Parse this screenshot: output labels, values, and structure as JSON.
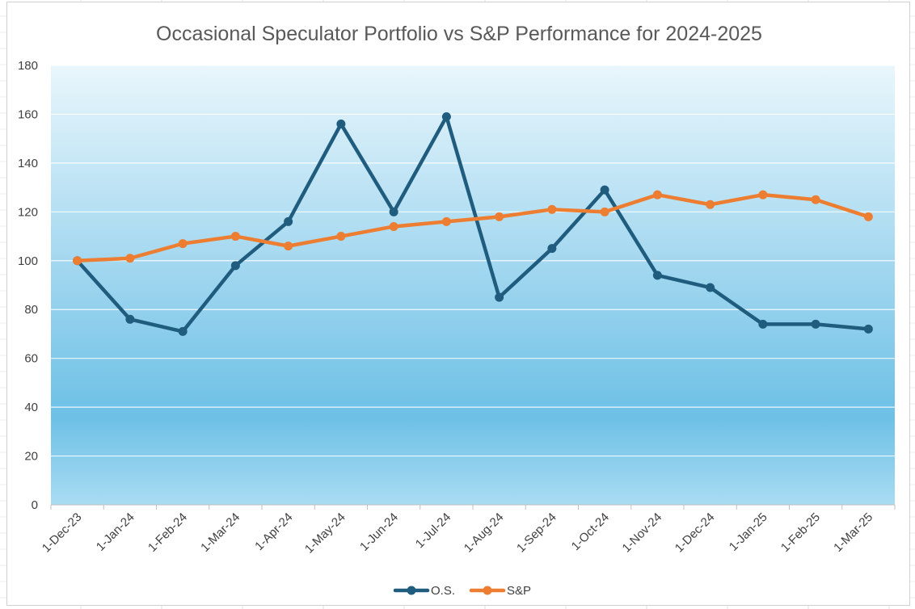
{
  "chart_data": {
    "type": "line",
    "title": "Occasional Speculator Portfolio vs S&P Performance for 2024-2025",
    "xlabel": "",
    "ylabel": "",
    "categories": [
      "1-Dec-23",
      "1-Jan-24",
      "1-Feb-24",
      "1-Mar-24",
      "1-Apr-24",
      "1-May-24",
      "1-Jun-24",
      "1-Jul-24",
      "1-Aug-24",
      "1-Sep-24",
      "1-Oct-24",
      "1-Nov-24",
      "1-Dec-24",
      "1-Jan-25",
      "1-Feb-25",
      "1-Mar-25"
    ],
    "y_ticks": [
      "0",
      "20",
      "40",
      "60",
      "80",
      "100",
      "120",
      "140",
      "160",
      "180"
    ],
    "ylim": [
      0,
      180
    ],
    "grid": true,
    "legend_position": "bottom",
    "series": [
      {
        "name": "O.S.",
        "color": "#1f5c7e",
        "values": [
          100,
          76,
          71,
          98,
          116,
          156,
          120,
          159,
          85,
          105,
          129,
          94,
          89,
          74,
          74,
          72
        ]
      },
      {
        "name": "S&P",
        "color": "#ed7d31",
        "values": [
          100,
          101,
          107,
          110,
          106,
          110,
          114,
          116,
          118,
          121,
          120,
          127,
          123,
          127,
          125,
          118
        ]
      }
    ],
    "background_gradient": [
      "#e9f6fc",
      "#6dc0e6",
      "#a9dcf3"
    ]
  }
}
